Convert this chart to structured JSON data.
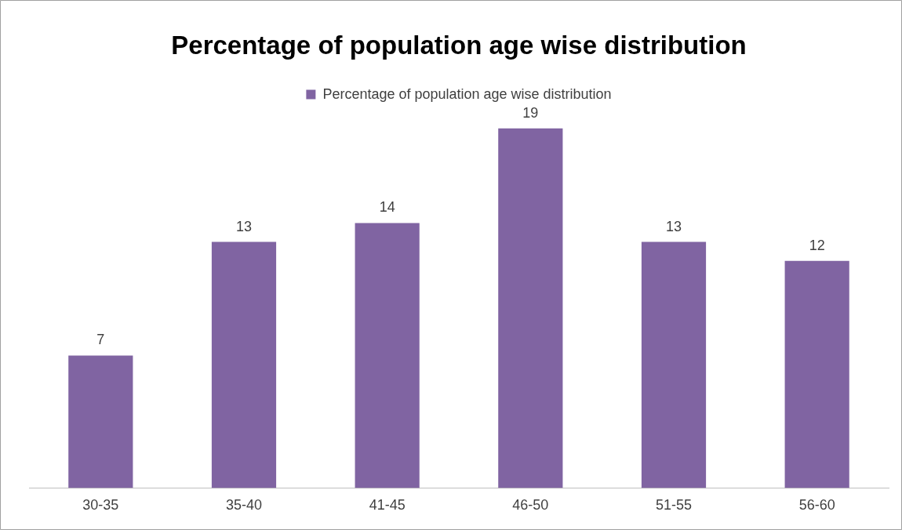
{
  "chart_data": {
    "type": "bar",
    "title": "Percentage of population age wise distribution",
    "categories": [
      "30-35",
      "35-40",
      "41-45",
      "46-50",
      "51-55",
      "56-60"
    ],
    "series": [
      {
        "name": "Percentage of population age wise distribution",
        "color": "#8064a2",
        "values": [
          7,
          13,
          14,
          19,
          13,
          12
        ]
      }
    ],
    "data_labels": true,
    "legend": "top",
    "grid": false
  }
}
